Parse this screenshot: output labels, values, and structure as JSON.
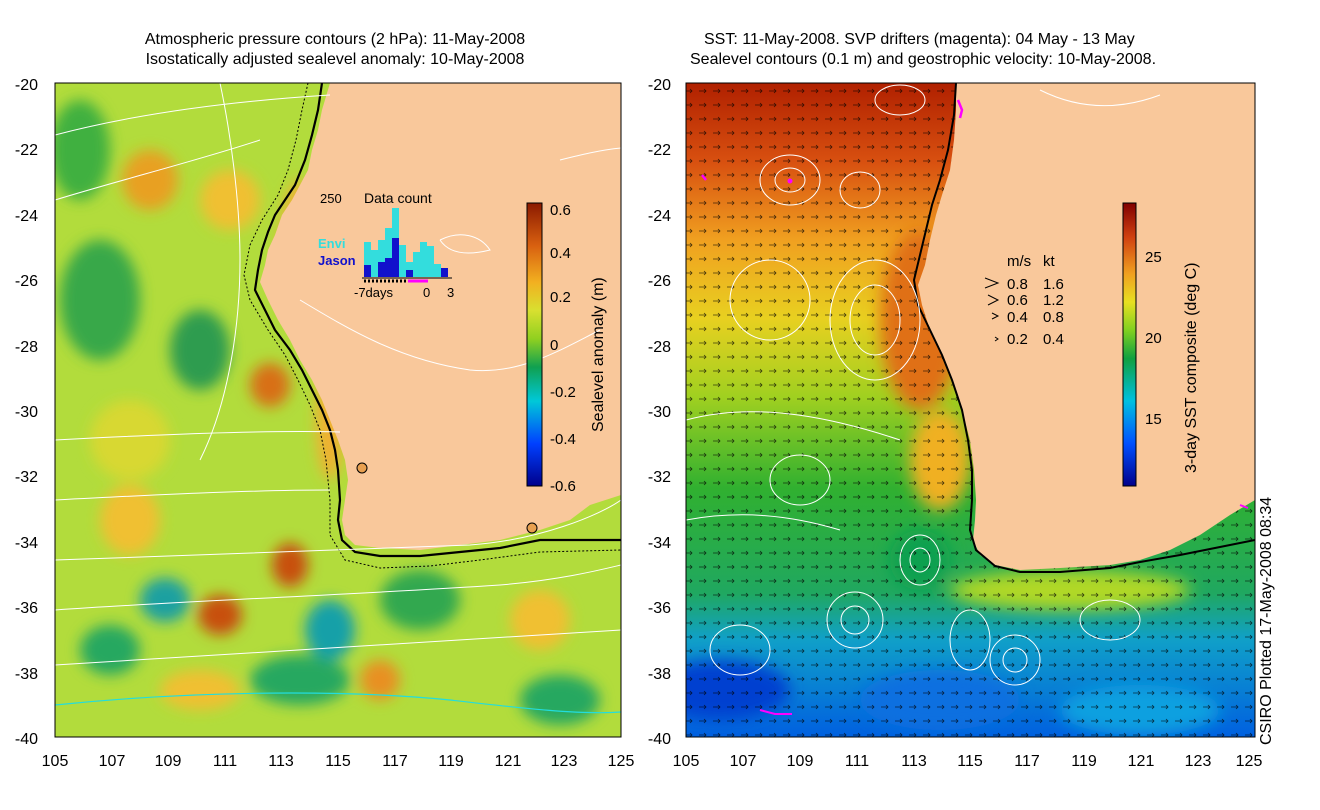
{
  "left_panel": {
    "title_line1": "Atmospheric pressure contours (2 hPa): 11-May-2008",
    "title_line2": "Isostatically adjusted sealevel anomaly: 10-May-2008",
    "y_ticks": [
      "-20",
      "-22",
      "-24",
      "-26",
      "-28",
      "-30",
      "-32",
      "-34",
      "-36",
      "-38",
      "-40"
    ],
    "x_ticks": [
      "105",
      "107",
      "109",
      "111",
      "113",
      "115",
      "117",
      "119",
      "121",
      "123",
      "125"
    ],
    "inset": {
      "title": "Data count",
      "max_label": "250",
      "legend_envi": "Envi",
      "legend_jason": "Jason",
      "x_label_start": "-7days",
      "x_label_zero": "0",
      "x_label_end": "3",
      "envi_color": "#33dddd",
      "jason_color": "#1111cc"
    },
    "colorbar": {
      "label": "Sealevel anomaly (m)",
      "ticks": [
        "0.6",
        "0.4",
        "0.2",
        "0",
        "-0.2",
        "-0.4",
        "-0.6"
      ]
    }
  },
  "right_panel": {
    "title_line1": "SST: 11-May-2008. SVP drifters (magenta): 04 May - 13 May",
    "title_line2": "Sealevel contours (0.1 m) and geostrophic velocity: 10-May-2008.",
    "y_ticks": [
      "-20",
      "-22",
      "-24",
      "-26",
      "-28",
      "-30",
      "-32",
      "-34",
      "-36",
      "-38",
      "-40"
    ],
    "x_ticks": [
      "105",
      "107",
      "109",
      "111",
      "113",
      "115",
      "117",
      "119",
      "121",
      "123",
      "125"
    ],
    "velocity_legend": {
      "header_ms": "m/s",
      "header_kt": "kt",
      "rows": [
        {
          "ms": "0.8",
          "kt": "1.6"
        },
        {
          "ms": "0.6",
          "kt": "1.2"
        },
        {
          "ms": "0.4",
          "kt": "0.8"
        },
        {
          "ms": "0.2",
          "kt": "0.4"
        }
      ]
    },
    "colorbar": {
      "label": "3-day SST composite (deg C)",
      "ticks": [
        "25",
        "20",
        "15"
      ]
    }
  },
  "footer": {
    "plotted": "CSIRO Plotted 17-May-2008 08:34"
  },
  "colors": {
    "land": "#f9c89b",
    "drifter": "#ff00ff"
  }
}
